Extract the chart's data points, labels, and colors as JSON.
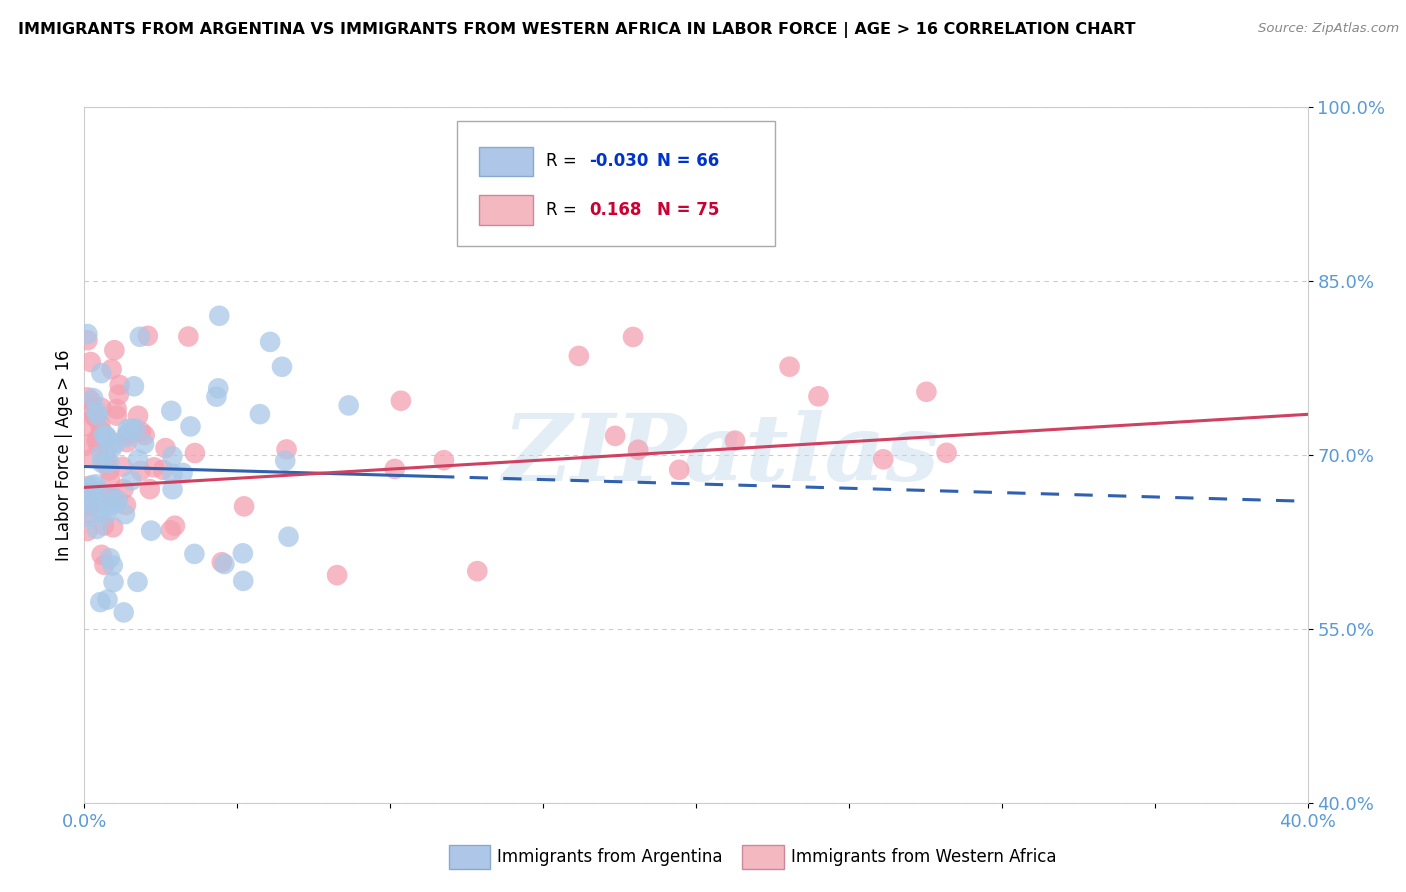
{
  "title": "IMMIGRANTS FROM ARGENTINA VS IMMIGRANTS FROM WESTERN AFRICA IN LABOR FORCE | AGE > 16 CORRELATION CHART",
  "source": "Source: ZipAtlas.com",
  "ylabel": "In Labor Force | Age > 16",
  "xlim": [
    0.0,
    0.4
  ],
  "ylim": [
    0.4,
    1.0
  ],
  "xtick_positions": [
    0.0,
    0.05,
    0.1,
    0.15,
    0.2,
    0.25,
    0.3,
    0.35,
    0.4
  ],
  "xtick_labels": [
    "0.0%",
    "",
    "",
    "",
    "",
    "",
    "",
    "",
    "40.0%"
  ],
  "ytick_positions": [
    0.4,
    0.55,
    0.7,
    0.85,
    1.0
  ],
  "ytick_labels": [
    "40.0%",
    "55.0%",
    "70.0%",
    "85.0%",
    "100.0%"
  ],
  "argentina_color": "#a8c8e8",
  "western_africa_color": "#f4a0b0",
  "argentina_line_color": "#3060b0",
  "western_africa_line_color": "#d04060",
  "argentina_R": -0.03,
  "argentina_N": 66,
  "western_africa_R": 0.168,
  "western_africa_N": 75,
  "background_color": "#ffffff",
  "grid_color": "#cccccc",
  "axis_color": "#5b9bd5",
  "watermark_text": "ZIPatlas",
  "legend_box_color_argentina": "#aec6e8",
  "legend_box_color_western_africa": "#f4b8c1",
  "trend_line_solid_end_x": 0.115,
  "argentina_trend_y_at_0": 0.69,
  "argentina_trend_y_at_04": 0.66,
  "western_africa_trend_y_at_0": 0.672,
  "western_africa_trend_y_at_04": 0.735
}
